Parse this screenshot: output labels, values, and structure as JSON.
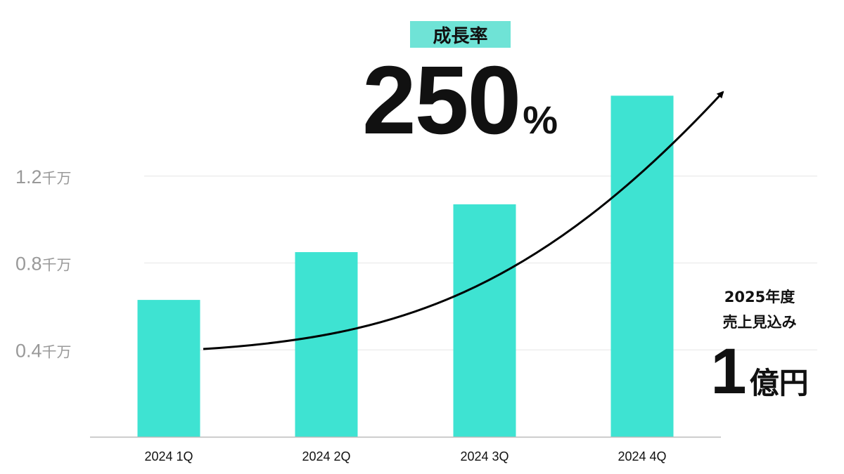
{
  "chart_data": {
    "type": "bar",
    "categories": [
      "2024 1Q",
      "2024 2Q",
      "2024 3Q",
      "2024 4Q"
    ],
    "values": [
      0.63,
      0.85,
      1.07,
      1.57
    ],
    "y_unit_label": "千万",
    "y_ticks": [
      "0.4",
      "0.8",
      "1.2"
    ],
    "y_tick_values": [
      0.4,
      0.8,
      1.2
    ],
    "ylim": [
      0,
      1.6
    ],
    "grid": true,
    "colors": {
      "bar": "#3ee3d2",
      "arrow": "#000000",
      "grid": "#e6e6e6",
      "axis": "#bbbbbb",
      "tick_text": "#999999"
    }
  },
  "growth": {
    "label": "成長率",
    "value": "250",
    "unit": "%",
    "badge_color": "#6fe3d6"
  },
  "forecast": {
    "line1": "2025年度",
    "line2": "売上見込み",
    "value": "1",
    "unit": "億円"
  }
}
